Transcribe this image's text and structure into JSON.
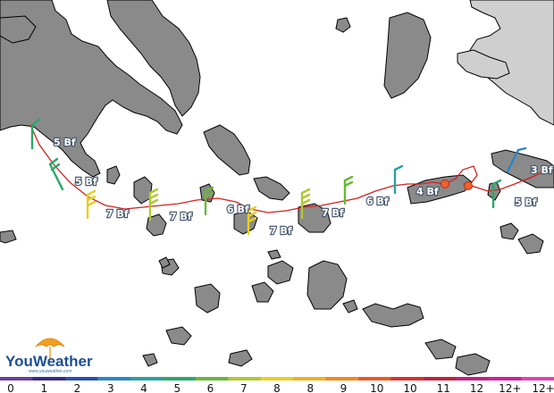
{
  "logo": {
    "brand_you": "You",
    "brand_weather": "Weather",
    "brand_sub": "www.youweather.com",
    "colors": {
      "you": "#1d4e96",
      "weather": "#1d4e96",
      "umbrella": "#f0a020"
    }
  },
  "route": {
    "color": "#d42020",
    "waypoints": [
      {
        "name": "waypoint-1"
      },
      {
        "name": "waypoint-2"
      }
    ],
    "waypoint_color": "#f06030"
  },
  "wind_labels": [
    "5 Bf",
    "5 Bf",
    "7 Bf",
    "7 Bf",
    "6 Bf",
    "7 Bf",
    "7 Bf",
    "6 Bf",
    "4 Bf",
    "3 Bf",
    "5 Bf"
  ],
  "scale": {
    "labels": [
      "0",
      "1",
      "2",
      "3",
      "4",
      "5",
      "6",
      "7",
      "8",
      "8",
      "9",
      "10",
      "10",
      "11",
      "12",
      "12+",
      "12+"
    ],
    "colors": [
      "#6a3fa0",
      "#3a2a8a",
      "#2a4fb0",
      "#2a86c8",
      "#2aa0a0",
      "#2aa86a",
      "#6ab83a",
      "#b0c830",
      "#e8d020",
      "#f0b020",
      "#f08a20",
      "#e85a20",
      "#d83030",
      "#c02040",
      "#c02080",
      "#d020a0",
      "#e040b0"
    ]
  }
}
